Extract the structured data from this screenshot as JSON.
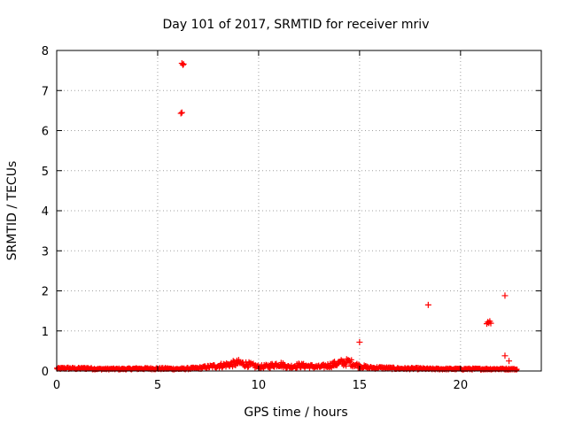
{
  "chart_data": {
    "type": "scatter",
    "title": "Day 101 of 2017, SRMTID for receiver mriv",
    "xlabel": "GPS time / hours",
    "ylabel": "SRMTID / TECUs",
    "xlim": [
      0,
      24
    ],
    "ylim": [
      0,
      8
    ],
    "xticks": [
      0,
      5,
      10,
      15,
      20
    ],
    "yticks": [
      0,
      1,
      2,
      3,
      4,
      5,
      6,
      7,
      8
    ],
    "grid": true,
    "marker": "+",
    "color": "#ff0000",
    "outliers": [
      {
        "x": 6.2,
        "y": 7.68
      },
      {
        "x": 6.25,
        "y": 7.64
      },
      {
        "x": 6.28,
        "y": 7.66
      },
      {
        "x": 6.15,
        "y": 6.43
      },
      {
        "x": 6.2,
        "y": 6.45
      },
      {
        "x": 15.0,
        "y": 0.72
      },
      {
        "x": 18.4,
        "y": 1.65
      },
      {
        "x": 21.3,
        "y": 1.18
      },
      {
        "x": 21.35,
        "y": 1.22
      },
      {
        "x": 21.4,
        "y": 1.2
      },
      {
        "x": 21.45,
        "y": 1.24
      },
      {
        "x": 21.5,
        "y": 1.19
      },
      {
        "x": 22.2,
        "y": 1.88
      },
      {
        "x": 22.2,
        "y": 0.38
      },
      {
        "x": 22.4,
        "y": 0.25
      }
    ],
    "baseline_profile": [
      [
        0.0,
        0.06
      ],
      [
        0.5,
        0.07
      ],
      [
        1.0,
        0.06
      ],
      [
        1.5,
        0.07
      ],
      [
        2.0,
        0.05
      ],
      [
        2.5,
        0.05
      ],
      [
        3.0,
        0.05
      ],
      [
        3.5,
        0.05
      ],
      [
        4.0,
        0.06
      ],
      [
        4.5,
        0.06
      ],
      [
        5.0,
        0.06
      ],
      [
        5.5,
        0.06
      ],
      [
        6.0,
        0.05
      ],
      [
        6.5,
        0.06
      ],
      [
        7.0,
        0.07
      ],
      [
        7.5,
        0.1
      ],
      [
        8.0,
        0.13
      ],
      [
        8.5,
        0.16
      ],
      [
        9.0,
        0.2
      ],
      [
        9.5,
        0.16
      ],
      [
        10.0,
        0.1
      ],
      [
        10.5,
        0.12
      ],
      [
        11.0,
        0.18
      ],
      [
        11.5,
        0.1
      ],
      [
        12.0,
        0.14
      ],
      [
        12.5,
        0.12
      ],
      [
        13.0,
        0.1
      ],
      [
        13.5,
        0.14
      ],
      [
        14.0,
        0.2
      ],
      [
        14.5,
        0.22
      ],
      [
        15.0,
        0.12
      ],
      [
        15.5,
        0.08
      ],
      [
        16.0,
        0.08
      ],
      [
        16.5,
        0.07
      ],
      [
        17.0,
        0.06
      ],
      [
        17.5,
        0.06
      ],
      [
        18.0,
        0.06
      ],
      [
        18.5,
        0.05
      ],
      [
        19.0,
        0.05
      ],
      [
        19.5,
        0.05
      ],
      [
        20.0,
        0.05
      ],
      [
        20.5,
        0.05
      ],
      [
        21.0,
        0.05
      ],
      [
        21.5,
        0.05
      ],
      [
        22.0,
        0.05
      ],
      [
        22.5,
        0.05
      ],
      [
        22.8,
        0.04
      ]
    ],
    "baseline_x_range": [
      0.0,
      22.8
    ],
    "baseline_points": 760
  }
}
